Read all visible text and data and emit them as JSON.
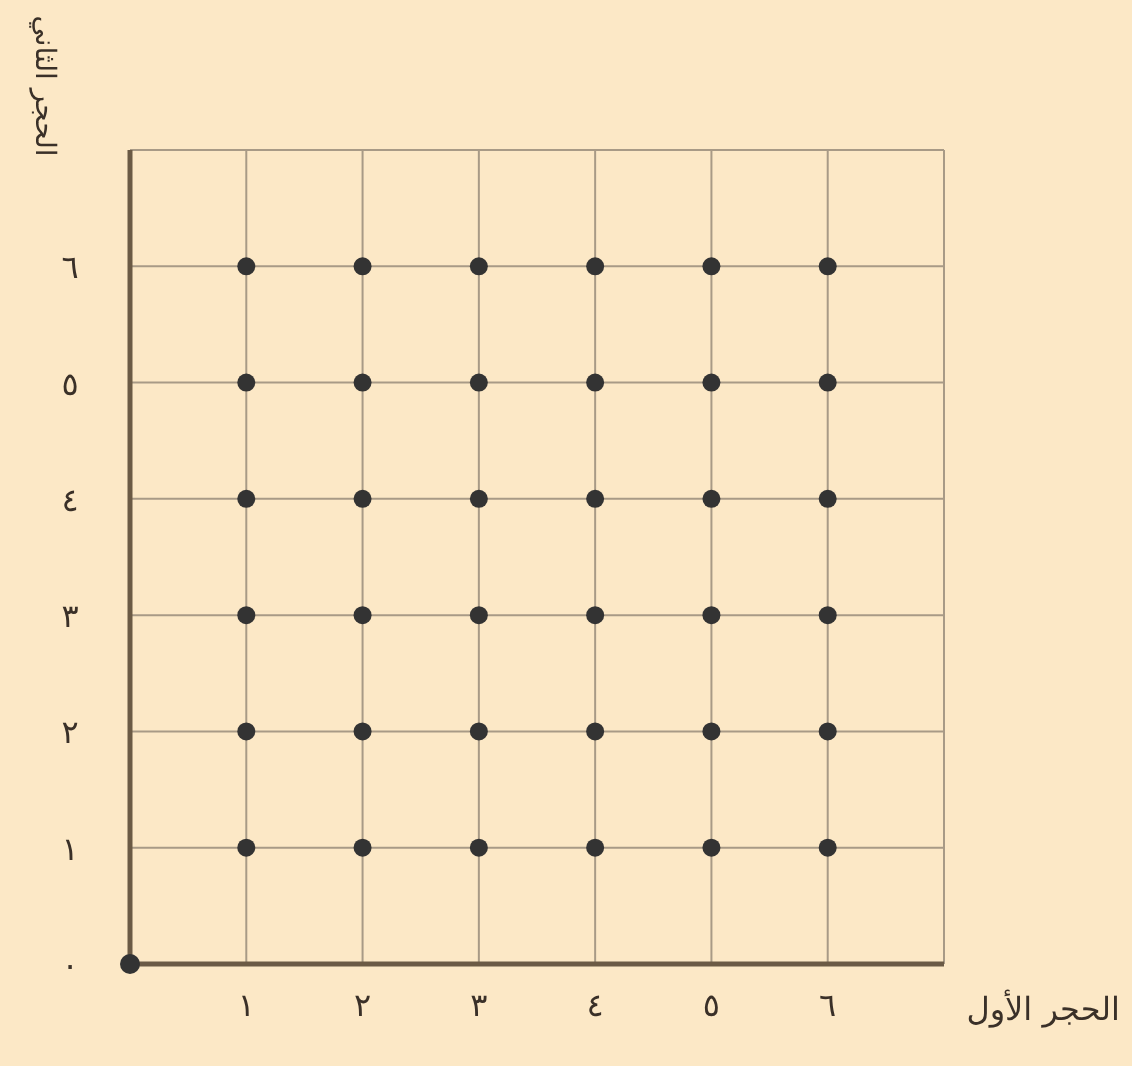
{
  "chart_data": {
    "type": "scatter",
    "xlabel": "الحجر الأول",
    "ylabel": "الحجر الثاني",
    "xlim": [
      0,
      7
    ],
    "ylim": [
      0,
      7
    ],
    "xticks": [
      {
        "value": 0,
        "label": null
      },
      {
        "value": 1,
        "label": "١"
      },
      {
        "value": 2,
        "label": "٢"
      },
      {
        "value": 3,
        "label": "٣"
      },
      {
        "value": 4,
        "label": "٤"
      },
      {
        "value": 5,
        "label": "٥"
      },
      {
        "value": 6,
        "label": "٦"
      }
    ],
    "yticks": [
      {
        "value": 0,
        "label": "٠"
      },
      {
        "value": 1,
        "label": "١"
      },
      {
        "value": 2,
        "label": "٢"
      },
      {
        "value": 3,
        "label": "٣"
      },
      {
        "value": 4,
        "label": "٤"
      },
      {
        "value": 5,
        "label": "٥"
      },
      {
        "value": 6,
        "label": "٦"
      }
    ],
    "grid": true,
    "marker": "circle",
    "series": [
      {
        "color": "#333333",
        "x": [
          1,
          2,
          3,
          4,
          5,
          6,
          1,
          2,
          3,
          4,
          5,
          6,
          1,
          2,
          3,
          4,
          5,
          6,
          1,
          2,
          3,
          4,
          5,
          6,
          1,
          2,
          3,
          4,
          5,
          6,
          1,
          2,
          3,
          4,
          5,
          6
        ],
        "values": [
          1,
          1,
          1,
          1,
          1,
          1,
          2,
          2,
          2,
          2,
          2,
          2,
          3,
          3,
          3,
          3,
          3,
          3,
          4,
          4,
          4,
          4,
          4,
          4,
          5,
          5,
          5,
          5,
          5,
          5,
          6,
          6,
          6,
          6,
          6,
          6
        ]
      },
      {
        "color": "#333333",
        "x": [
          0
        ],
        "values": [
          0
        ]
      }
    ]
  }
}
